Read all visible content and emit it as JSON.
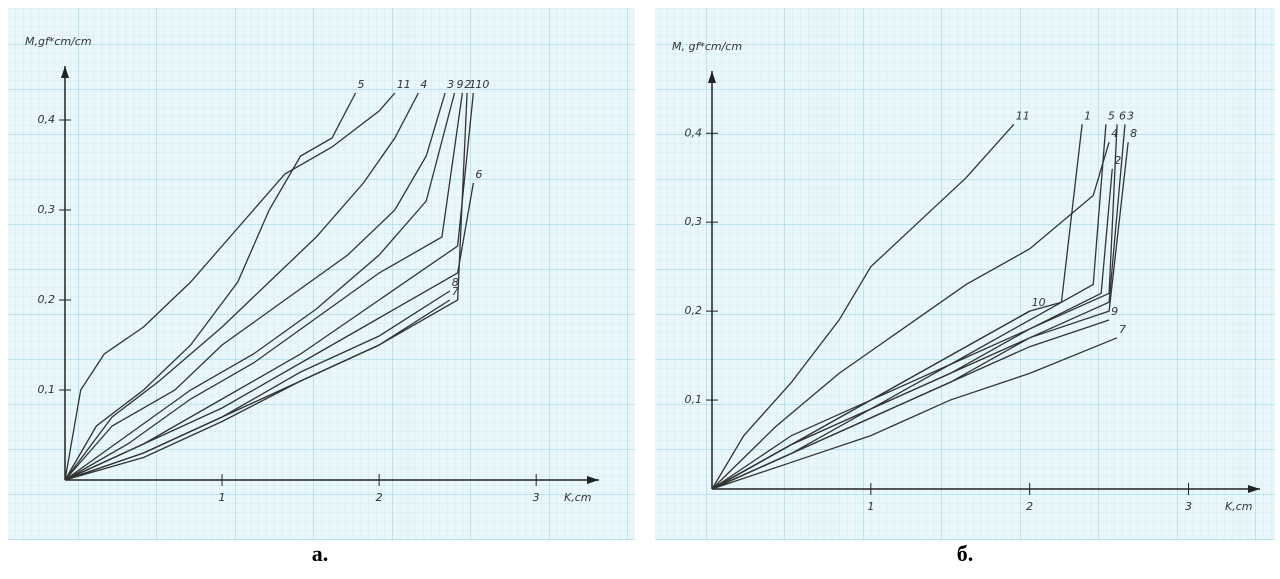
{
  "chart_data": [
    {
      "type": "line",
      "x_label": "K,cm",
      "y_label": "M,gf*cm/cm",
      "caption": "а.",
      "xlim": [
        0,
        3.4
      ],
      "ylim": [
        0,
        0.46
      ],
      "xticks": [
        1,
        2,
        3
      ],
      "yticks": [
        {
          "value": 0.1,
          "label": "0,1"
        },
        {
          "value": 0.2,
          "label": "0,2"
        },
        {
          "value": 0.3,
          "label": "0,3"
        },
        {
          "value": 0.4,
          "label": "0,4"
        }
      ],
      "series": [
        {
          "name": "11",
          "color": "#333333",
          "x": [
            0,
            0.1,
            0.25,
            0.5,
            0.8,
            1.1,
            1.4,
            1.7,
            2.0,
            2.1
          ],
          "values": [
            0,
            0.1,
            0.14,
            0.17,
            0.22,
            0.28,
            0.34,
            0.37,
            0.41,
            0.43
          ]
        },
        {
          "name": "5",
          "color": "#333333",
          "x": [
            0,
            0.2,
            0.5,
            0.8,
            1.1,
            1.3,
            1.5,
            1.7,
            1.85
          ],
          "values": [
            0,
            0.06,
            0.1,
            0.15,
            0.22,
            0.3,
            0.36,
            0.38,
            0.43
          ]
        },
        {
          "name": "4",
          "color": "#333333",
          "x": [
            0,
            0.3,
            0.6,
            1.0,
            1.3,
            1.6,
            1.9,
            2.1,
            2.25
          ],
          "values": [
            0,
            0.07,
            0.11,
            0.17,
            0.22,
            0.27,
            0.33,
            0.38,
            0.43
          ]
        },
        {
          "name": "3",
          "color": "#333333",
          "x": [
            0,
            0.3,
            0.7,
            1.0,
            1.4,
            1.8,
            2.1,
            2.3,
            2.42
          ],
          "values": [
            0,
            0.06,
            0.1,
            0.15,
            0.2,
            0.25,
            0.3,
            0.36,
            0.43
          ]
        },
        {
          "name": "9",
          "color": "#333333",
          "x": [
            0,
            0.4,
            0.8,
            1.2,
            1.6,
            2.0,
            2.3,
            2.48
          ],
          "values": [
            0,
            0.05,
            0.1,
            0.14,
            0.19,
            0.25,
            0.31,
            0.43
          ]
        },
        {
          "name": "2",
          "color": "#333333",
          "x": [
            0,
            0.4,
            0.8,
            1.2,
            1.6,
            2.0,
            2.4,
            2.53
          ],
          "values": [
            0,
            0.04,
            0.09,
            0.13,
            0.18,
            0.23,
            0.27,
            0.43
          ]
        },
        {
          "name": "10",
          "color": "#333333",
          "x": [
            0,
            0.5,
            1.0,
            1.5,
            2.0,
            2.5,
            2.6
          ],
          "values": [
            0,
            0.04,
            0.09,
            0.14,
            0.2,
            0.26,
            0.43
          ]
        },
        {
          "name": "6",
          "color": "#333333",
          "x": [
            0,
            0.5,
            1.0,
            1.5,
            2.0,
            2.5,
            2.6
          ],
          "values": [
            0,
            0.04,
            0.08,
            0.13,
            0.18,
            0.23,
            0.33
          ]
        },
        {
          "name": "8",
          "color": "#333333",
          "x": [
            0,
            0.5,
            1.0,
            1.5,
            2.0,
            2.45
          ],
          "values": [
            0,
            0.03,
            0.07,
            0.12,
            0.16,
            0.21
          ]
        },
        {
          "name": "1",
          "color": "#333333",
          "x": [
            0,
            0.5,
            1.0,
            1.5,
            2.0,
            2.5,
            2.56
          ],
          "values": [
            0,
            0.03,
            0.07,
            0.11,
            0.15,
            0.2,
            0.43
          ]
        },
        {
          "name": "7",
          "color": "#333333",
          "x": [
            0,
            0.5,
            1.0,
            1.5,
            2.0,
            2.45
          ],
          "values": [
            0,
            0.025,
            0.065,
            0.11,
            0.15,
            0.2
          ]
        }
      ]
    },
    {
      "type": "line",
      "x_label": "K,cm",
      "y_label": "M, gf*cm/cm",
      "caption": "б.",
      "xlim": [
        0,
        3.45
      ],
      "ylim": [
        0,
        0.47
      ],
      "xticks": [
        1,
        2,
        3
      ],
      "yticks": [
        {
          "value": 0.1,
          "label": "0,1"
        },
        {
          "value": 0.2,
          "label": "0,2"
        },
        {
          "value": 0.3,
          "label": "0,3"
        },
        {
          "value": 0.4,
          "label": "0,4"
        }
      ],
      "series": [
        {
          "name": "11",
          "color": "#333333",
          "x": [
            0,
            0.2,
            0.5,
            0.8,
            1.0,
            1.3,
            1.6,
            1.9
          ],
          "values": [
            0,
            0.06,
            0.12,
            0.19,
            0.25,
            0.3,
            0.35,
            0.41
          ]
        },
        {
          "name": "1",
          "color": "#333333",
          "x": [
            0,
            0.5,
            1.0,
            1.5,
            2.0,
            2.2,
            2.33
          ],
          "values": [
            0,
            0.06,
            0.1,
            0.15,
            0.2,
            0.21,
            0.41
          ]
        },
        {
          "name": "5",
          "color": "#333333",
          "x": [
            0,
            0.5,
            1.0,
            1.5,
            2.0,
            2.4,
            2.48
          ],
          "values": [
            0,
            0.05,
            0.1,
            0.14,
            0.19,
            0.23,
            0.41
          ]
        },
        {
          "name": "4",
          "color": "#333333",
          "x": [
            0,
            0.4,
            0.8,
            1.2,
            1.6,
            2.0,
            2.4,
            2.5
          ],
          "values": [
            0,
            0.07,
            0.13,
            0.18,
            0.23,
            0.27,
            0.33,
            0.39
          ]
        },
        {
          "name": "2",
          "color": "#333333",
          "x": [
            0,
            0.5,
            1.0,
            1.5,
            2.0,
            2.45,
            2.52
          ],
          "values": [
            0,
            0.05,
            0.09,
            0.13,
            0.18,
            0.22,
            0.36
          ]
        },
        {
          "name": "6",
          "color": "#333333",
          "x": [
            0,
            0.5,
            1.0,
            1.5,
            2.0,
            2.5,
            2.55
          ],
          "values": [
            0,
            0.05,
            0.09,
            0.14,
            0.18,
            0.22,
            0.41
          ]
        },
        {
          "name": "3",
          "color": "#333333",
          "x": [
            0,
            0.5,
            1.0,
            1.5,
            2.0,
            2.5,
            2.6
          ],
          "values": [
            0,
            0.04,
            0.09,
            0.13,
            0.17,
            0.21,
            0.41
          ]
        },
        {
          "name": "8",
          "color": "#333333",
          "x": [
            0,
            0.5,
            1.0,
            1.5,
            2.0,
            2.5,
            2.62
          ],
          "values": [
            0,
            0.04,
            0.08,
            0.12,
            0.17,
            0.2,
            0.39
          ]
        },
        {
          "name": "10",
          "color": "#333333",
          "x": [
            0,
            0.5,
            1.0,
            1.5,
            2.0
          ],
          "values": [
            0,
            0.05,
            0.1,
            0.15,
            0.2
          ]
        },
        {
          "name": "9",
          "color": "#333333",
          "x": [
            0,
            0.5,
            1.0,
            1.5,
            2.0,
            2.5
          ],
          "values": [
            0,
            0.04,
            0.08,
            0.12,
            0.16,
            0.19
          ]
        },
        {
          "name": "7",
          "color": "#333333",
          "x": [
            0,
            0.5,
            1.0,
            1.5,
            2.0,
            2.55
          ],
          "values": [
            0,
            0.03,
            0.06,
            0.1,
            0.13,
            0.17
          ]
        }
      ]
    }
  ]
}
